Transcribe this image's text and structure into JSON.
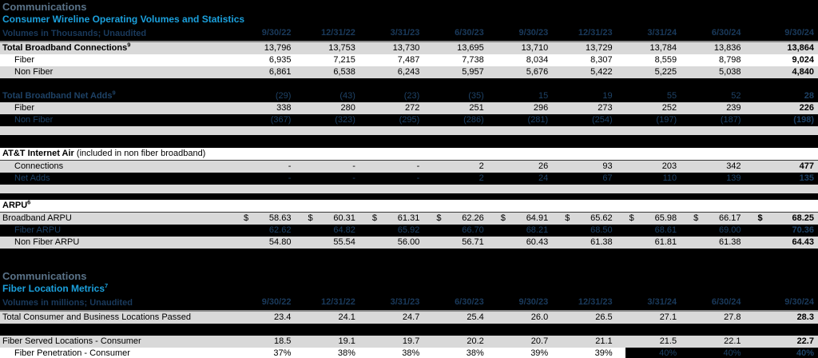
{
  "colors": {
    "accent_blue": "#1ba0dc",
    "inverted_navy_text": "#1e4266",
    "row_gray": "#d9d9d9",
    "title_gray": "#5a7389"
  },
  "columns": [
    "9/30/22",
    "12/31/22",
    "3/31/23",
    "6/30/23",
    "9/30/23",
    "12/31/23",
    "3/31/24",
    "6/30/24",
    "9/30/24"
  ],
  "section1": {
    "title": "Communications",
    "subtitle": "Consumer Wireline Operating Volumes and Statistics",
    "units_label": "Volumes in Thousands; Unaudited",
    "broadband_table": {
      "rows": [
        {
          "label": "Total Broadband Connections",
          "sup": "9",
          "style": "light",
          "bold": true,
          "top_border": true,
          "values": [
            "13,796",
            "13,753",
            "13,730",
            "13,695",
            "13,710",
            "13,729",
            "13,784",
            "13,836",
            "13,864"
          ]
        },
        {
          "label": "Fiber",
          "indent": 1,
          "style": "white",
          "values": [
            "6,935",
            "7,215",
            "7,487",
            "7,738",
            "8,034",
            "8,307",
            "8,559",
            "8,798",
            "9,024"
          ]
        },
        {
          "label": "Non Fiber",
          "indent": 1,
          "style": "light",
          "values": [
            "6,861",
            "6,538",
            "6,243",
            "5,957",
            "5,676",
            "5,422",
            "5,225",
            "5,038",
            "4,840"
          ]
        },
        {
          "style": "spacer-dark"
        },
        {
          "label": "Total Broadband Net Adds",
          "sup": "9",
          "style": "dark",
          "bold": true,
          "values": [
            "(29)",
            "(43)",
            "(23)",
            "(35)",
            "15",
            "19",
            "55",
            "52",
            "28"
          ]
        },
        {
          "label": "Fiber",
          "indent": 1,
          "style": "light",
          "values": [
            "338",
            "280",
            "272",
            "251",
            "296",
            "273",
            "252",
            "239",
            "226"
          ]
        },
        {
          "label": "Non Fiber",
          "indent": 1,
          "style": "dark",
          "values": [
            "(367)",
            "(323)",
            "(295)",
            "(286)",
            "(281)",
            "(254)",
            "(197)",
            "(187)",
            "(198)"
          ]
        },
        {
          "style": "spacer-light"
        }
      ]
    },
    "internet_air_table": {
      "rows": [
        {
          "label": "AT&T Internet Air",
          "suffix": " (included in non fiber broadband)",
          "style": "white",
          "bold": true,
          "underline": true,
          "values": []
        },
        {
          "label": "Connections",
          "indent": 1,
          "style": "light",
          "values": [
            "-",
            "-",
            "-",
            "2",
            "26",
            "93",
            "203",
            "342",
            "477"
          ]
        },
        {
          "label": "Net Adds",
          "indent": 1,
          "style": "dark",
          "values": [
            "-",
            "-",
            "-",
            "2",
            "24",
            "67",
            "110",
            "139",
            "135"
          ]
        },
        {
          "style": "spacer-light"
        }
      ]
    },
    "arpu_table": {
      "rows": [
        {
          "label": "ARPU",
          "sup": "6",
          "style": "white",
          "bold": true,
          "underline": true,
          "values": []
        },
        {
          "label": "Broadband ARPU",
          "style": "light",
          "dollar": true,
          "values": [
            "58.63",
            "60.31",
            "61.31",
            "62.26",
            "64.91",
            "65.62",
            "65.98",
            "66.17",
            "68.25"
          ]
        },
        {
          "label": "Fiber ARPU",
          "indent": 1,
          "style": "dark",
          "values": [
            "62.62",
            "64.82",
            "65.92",
            "66.70",
            "68.21",
            "68.50",
            "68.61",
            "69.00",
            "70.36"
          ]
        },
        {
          "label": "Non Fiber ARPU",
          "indent": 1,
          "style": "light",
          "values": [
            "54.80",
            "55.54",
            "56.00",
            "56.71",
            "60.43",
            "61.38",
            "61.81",
            "61.38",
            "64.43"
          ]
        }
      ]
    }
  },
  "section2": {
    "title": "Communications",
    "subtitle": "Fiber Location Metrics",
    "subtitle_sup": "7",
    "units_label": "Volumes in millions; Unaudited",
    "fiber_table": {
      "rows": [
        {
          "label": "Total Consumer and Business Locations Passed",
          "style": "light",
          "top_border": true,
          "values": [
            "23.4",
            "24.1",
            "24.7",
            "25.4",
            "26.0",
            "26.5",
            "27.1",
            "27.8",
            "28.3"
          ]
        },
        {
          "style": "spacer-dark"
        },
        {
          "label": "Fiber Served Locations - Consumer",
          "style": "light",
          "values": [
            "18.5",
            "19.1",
            "19.7",
            "20.2",
            "20.7",
            "21.1",
            "21.5",
            "22.1",
            "22.7"
          ]
        },
        {
          "label": "Fiber Penetration - Consumer",
          "indent": 1,
          "style": "white",
          "invert_from": 6,
          "values": [
            "37%",
            "38%",
            "38%",
            "38%",
            "39%",
            "39%",
            "40%",
            "40%",
            "40%"
          ]
        }
      ]
    }
  }
}
